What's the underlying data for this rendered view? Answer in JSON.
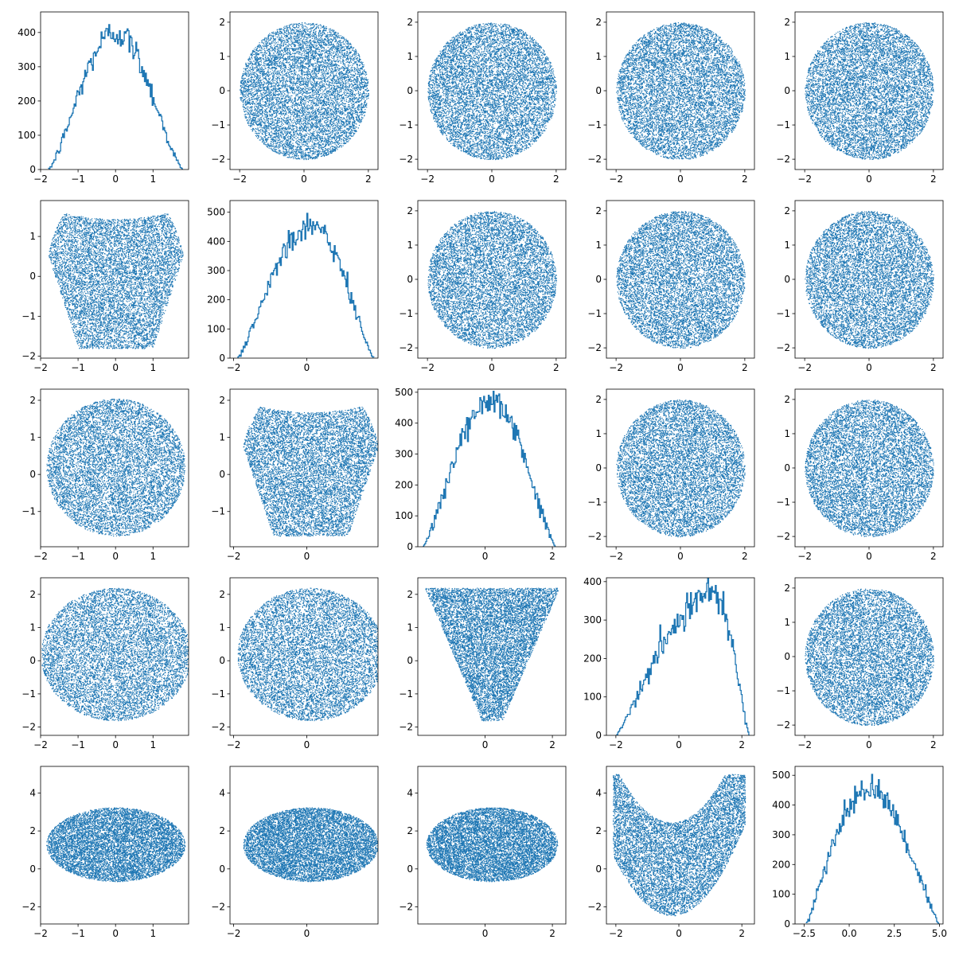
{
  "figure": {
    "background": "#ffffff",
    "mark_color": "#1f77b4",
    "rows": 5,
    "cols": 5
  },
  "chart_data": [
    {
      "row": 0,
      "col": 0,
      "type": "line",
      "subtype": "histogram-step",
      "xlim": [
        -2.0,
        1.95
      ],
      "ylim": [
        0,
        460
      ],
      "xticks": [
        -2,
        -1,
        0,
        1
      ],
      "yticks": [
        0,
        100,
        200,
        300,
        400
      ],
      "support": [
        -1.8,
        1.8
      ],
      "peak_x": 0.0,
      "peak_y": 400,
      "shape": 1.4
    },
    {
      "row": 0,
      "col": 1,
      "type": "scatter",
      "xlim": [
        -2.3,
        2.3
      ],
      "ylim": [
        -2.3,
        2.3
      ],
      "xticks": [
        -2,
        0,
        2
      ],
      "yticks": [
        -2,
        -1,
        0,
        1,
        2
      ],
      "shape": "disc",
      "center": [
        0,
        0
      ],
      "radius": 2.0
    },
    {
      "row": 0,
      "col": 2,
      "type": "scatter",
      "xlim": [
        -2.3,
        2.3
      ],
      "ylim": [
        -2.3,
        2.3
      ],
      "xticks": [
        -2,
        0,
        2
      ],
      "yticks": [
        -2,
        -1,
        0,
        1,
        2
      ],
      "shape": "disc",
      "center": [
        0,
        0
      ],
      "radius": 2.0
    },
    {
      "row": 0,
      "col": 3,
      "type": "scatter",
      "xlim": [
        -2.3,
        2.3
      ],
      "ylim": [
        -2.3,
        2.3
      ],
      "xticks": [
        -2,
        0,
        2
      ],
      "yticks": [
        -2,
        -1,
        0,
        1,
        2
      ],
      "shape": "disc",
      "center": [
        0,
        0
      ],
      "radius": 2.0
    },
    {
      "row": 0,
      "col": 3.999,
      "type": "scatter",
      "xlim": [
        -2.3,
        2.3
      ],
      "ylim": [
        -2.3,
        2.3
      ],
      "xticks": [
        -2,
        0,
        2
      ],
      "yticks": [
        -2,
        -1,
        0,
        1,
        2
      ],
      "shape": "disc",
      "center": [
        0,
        0
      ],
      "radius": 2.0
    },
    {
      "row": 1,
      "col": 0,
      "type": "scatter",
      "xlim": [
        -2.0,
        1.95
      ],
      "ylim": [
        -2.05,
        1.9
      ],
      "xticks": [
        -2,
        -1,
        0,
        1
      ],
      "yticks": [
        -2,
        -1,
        0,
        1
      ],
      "shape": "heart",
      "center": [
        0,
        0
      ],
      "radius": 1.8
    },
    {
      "row": 1,
      "col": 1,
      "type": "line",
      "subtype": "histogram-step",
      "xlim": [
        -2.1,
        1.95
      ],
      "ylim": [
        0,
        540
      ],
      "xticks": [
        -2,
        0
      ],
      "yticks": [
        0,
        100,
        200,
        300,
        400,
        500
      ],
      "support": [
        -1.9,
        1.85
      ],
      "peak_x": 0.1,
      "peak_y": 460,
      "shape": 1.3
    },
    {
      "row": 1,
      "col": 2,
      "type": "scatter",
      "xlim": [
        -2.3,
        2.3
      ],
      "ylim": [
        -2.3,
        2.3
      ],
      "xticks": [
        -2,
        0,
        2
      ],
      "yticks": [
        -2,
        -1,
        0,
        1,
        2
      ],
      "shape": "disc",
      "center": [
        0,
        0
      ],
      "radius": 2.0
    },
    {
      "row": 1,
      "col": 3,
      "type": "scatter",
      "xlim": [
        -2.3,
        2.3
      ],
      "ylim": [
        -2.3,
        2.3
      ],
      "xticks": [
        -2,
        0,
        2
      ],
      "yticks": [
        -2,
        -1,
        0,
        1,
        2
      ],
      "shape": "disc",
      "center": [
        0,
        0
      ],
      "radius": 2.0
    },
    {
      "row": 1,
      "col": 4,
      "type": "scatter",
      "xlim": [
        -2.3,
        2.3
      ],
      "ylim": [
        -2.3,
        2.3
      ],
      "xticks": [
        -2,
        0,
        2
      ],
      "yticks": [
        -2,
        -1,
        0,
        1,
        2
      ],
      "shape": "disc",
      "center": [
        0,
        0
      ],
      "radius": 2.0
    },
    {
      "row": 2,
      "col": 0,
      "type": "scatter",
      "xlim": [
        -2.0,
        1.95
      ],
      "ylim": [
        -1.95,
        2.3
      ],
      "xticks": [
        -2,
        -1,
        0,
        1
      ],
      "yticks": [
        -1,
        0,
        1,
        2
      ],
      "shape": "disc",
      "center": [
        0,
        0.2
      ],
      "radius": 1.85
    },
    {
      "row": 2,
      "col": 1,
      "type": "scatter",
      "xlim": [
        -2.1,
        1.95
      ],
      "ylim": [
        -1.95,
        2.3
      ],
      "xticks": [
        -2,
        0
      ],
      "yticks": [
        -1,
        0,
        1,
        2
      ],
      "shape": "heart",
      "center": [
        0.1,
        0.2
      ],
      "radius": 1.85
    },
    {
      "row": 2,
      "col": 2,
      "type": "line",
      "subtype": "histogram-step",
      "xlim": [
        -2.0,
        2.4
      ],
      "ylim": [
        0,
        510
      ],
      "xticks": [
        0,
        2
      ],
      "yticks": [
        0,
        100,
        200,
        300,
        400,
        500
      ],
      "support": [
        -1.85,
        2.1
      ],
      "peak_x": 0.2,
      "peak_y": 470,
      "shape": 1.3
    },
    {
      "row": 2,
      "col": 3,
      "type": "scatter",
      "xlim": [
        -2.3,
        2.3
      ],
      "ylim": [
        -2.3,
        2.3
      ],
      "xticks": [
        -2,
        0,
        2
      ],
      "yticks": [
        -2,
        -1,
        0,
        1,
        2
      ],
      "shape": "disc",
      "center": [
        0,
        0
      ],
      "radius": 2.0
    },
    {
      "row": 2,
      "col": 4,
      "type": "scatter",
      "xlim": [
        -2.3,
        2.3
      ],
      "ylim": [
        -2.3,
        2.3
      ],
      "xticks": [
        -2,
        0,
        2
      ],
      "yticks": [
        -2,
        -1,
        0,
        1,
        2
      ],
      "shape": "disc",
      "center": [
        0,
        0
      ],
      "radius": 2.0
    },
    {
      "row": 3,
      "col": 0,
      "type": "scatter",
      "xlim": [
        -2.0,
        1.95
      ],
      "ylim": [
        -2.25,
        2.5
      ],
      "xticks": [
        -2,
        -1,
        0,
        1
      ],
      "yticks": [
        -2,
        -1,
        0,
        1,
        2
      ],
      "shape": "disc",
      "center": [
        0,
        0.2
      ],
      "radius": 2.0
    },
    {
      "row": 3,
      "col": 1,
      "type": "scatter",
      "xlim": [
        -2.1,
        1.95
      ],
      "ylim": [
        -2.25,
        2.5
      ],
      "xticks": [
        -2,
        0
      ],
      "yticks": [
        -2,
        -1,
        0,
        1,
        2
      ],
      "shape": "disc",
      "center": [
        0.1,
        0.2
      ],
      "radius": 2.0
    },
    {
      "row": 3,
      "col": 2,
      "type": "scatter",
      "xlim": [
        -2.0,
        2.4
      ],
      "ylim": [
        -2.25,
        2.5
      ],
      "xticks": [
        0,
        2
      ],
      "yticks": [
        -2,
        -1,
        0,
        1,
        2
      ],
      "shape": "triangle",
      "center": [
        0.2,
        0.2
      ],
      "radius": 2.0
    },
    {
      "row": 3,
      "col": 3,
      "type": "line",
      "subtype": "histogram-step",
      "xlim": [
        -2.3,
        2.4
      ],
      "ylim": [
        0,
        410
      ],
      "xticks": [
        -2,
        0,
        2
      ],
      "yticks": [
        0,
        100,
        200,
        300,
        400
      ],
      "support": [
        -2.0,
        2.25
      ],
      "peak_x": 1.1,
      "peak_y": 370,
      "shape": 1.2
    },
    {
      "row": 3,
      "col": 4,
      "type": "scatter",
      "xlim": [
        -2.3,
        2.3
      ],
      "ylim": [
        -2.3,
        2.3
      ],
      "xticks": [
        -2,
        0,
        2
      ],
      "yticks": [
        -2,
        -1,
        0,
        1,
        2
      ],
      "shape": "disc",
      "center": [
        0,
        0
      ],
      "radius": 2.0
    },
    {
      "row": 4,
      "col": 0,
      "type": "scatter",
      "xlim": [
        -2.0,
        1.95
      ],
      "ylim": [
        -2.9,
        5.4
      ],
      "xticks": [
        -2,
        -1,
        0,
        1
      ],
      "yticks": [
        -2,
        0,
        2,
        4
      ],
      "shape": "disc",
      "center": [
        0,
        1.3
      ],
      "radius": 1.85,
      "y_spread": 1.95
    },
    {
      "row": 4,
      "col": 1,
      "type": "scatter",
      "xlim": [
        -2.1,
        1.95
      ],
      "ylim": [
        -2.9,
        5.4
      ],
      "xticks": [
        -2,
        0
      ],
      "yticks": [
        -2,
        0,
        2,
        4
      ],
      "shape": "disc",
      "center": [
        0.1,
        1.3
      ],
      "radius": 1.85,
      "y_spread": 1.95
    },
    {
      "row": 4,
      "col": 2,
      "type": "scatter",
      "xlim": [
        -2.0,
        2.4
      ],
      "ylim": [
        -2.9,
        5.4
      ],
      "xticks": [
        0,
        2
      ],
      "yticks": [
        -2,
        0,
        2,
        4
      ],
      "shape": "disc",
      "center": [
        0.2,
        1.3
      ],
      "radius": 1.95,
      "y_spread": 1.95
    },
    {
      "row": 4,
      "col": 3,
      "type": "scatter",
      "xlim": [
        -2.3,
        2.4
      ],
      "ylim": [
        -2.9,
        5.4
      ],
      "xticks": [
        -2,
        0,
        2
      ],
      "yticks": [
        -2,
        0,
        2,
        4
      ],
      "shape": "banana",
      "center": [
        0,
        1.0
      ],
      "radius": 2.1
    },
    {
      "row": 4,
      "col": 4,
      "type": "line",
      "subtype": "histogram-step",
      "xlim": [
        -3.0,
        5.2
      ],
      "ylim": [
        0,
        530
      ],
      "xticks": [
        -2.5,
        0.0,
        2.5,
        5.0
      ],
      "yticks": [
        0,
        100,
        200,
        300,
        400,
        500
      ],
      "support": [
        -2.4,
        5.0
      ],
      "peak_x": 1.0,
      "peak_y": 450,
      "shape": 1.2
    }
  ]
}
